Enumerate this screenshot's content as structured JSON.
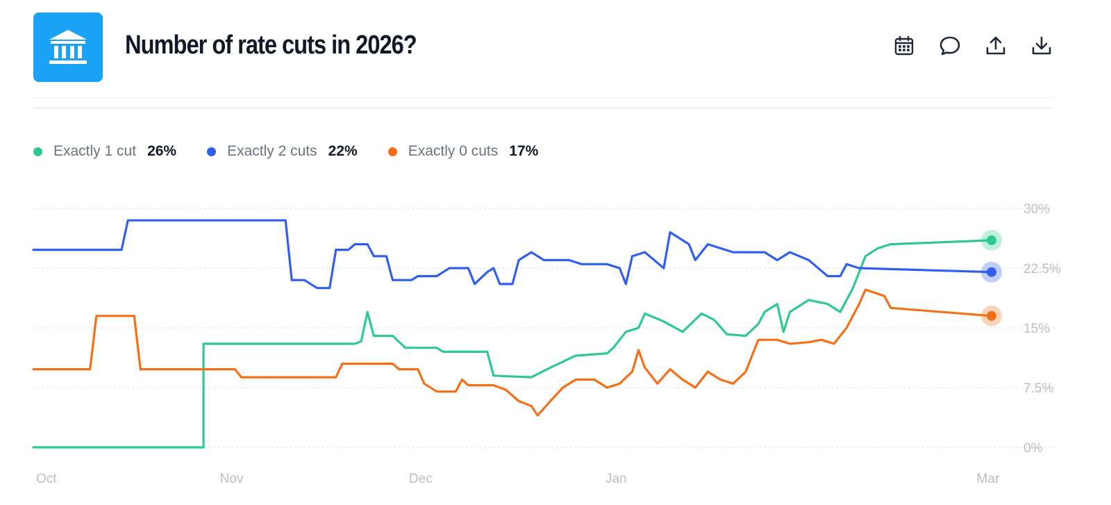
{
  "header": {
    "title": "Number of rate cuts in 2026?",
    "logo_icon": "bank-building-icon",
    "actions": [
      {
        "icon": "calendar-icon"
      },
      {
        "icon": "comment-icon"
      },
      {
        "icon": "share-upload-icon"
      },
      {
        "icon": "download-icon"
      }
    ]
  },
  "legend": [
    {
      "name": "Exactly 1 cut",
      "value": "26%",
      "color": "#2ec98f"
    },
    {
      "name": "Exactly 2 cuts",
      "value": "22%",
      "color": "#2f5ef0"
    },
    {
      "name": "Exactly 0 cuts",
      "value": "17%",
      "color": "#f56f16"
    }
  ],
  "chart_data": {
    "type": "line",
    "x_ticks": [
      "Oct",
      "Nov",
      "Dec",
      "Jan",
      "Mar"
    ],
    "y_ticks": [
      "30%",
      "22.5%",
      "15%",
      "7.5%",
      "0%"
    ],
    "ylim": [
      0,
      30
    ],
    "xlim": [
      "Oct 1",
      "Mar 2"
    ],
    "grid": "horizontal dotted",
    "series": [
      {
        "name": "Exactly 1 cut",
        "color": "#2ec98f",
        "points": [
          [
            "Oct 1",
            0
          ],
          [
            "Oct 28",
            0
          ],
          [
            "Oct 28",
            13
          ],
          [
            "Nov 21",
            13
          ],
          [
            "Nov 22",
            13.3
          ],
          [
            "Nov 23",
            17
          ],
          [
            "Nov 24",
            14
          ],
          [
            "Nov 27",
            14
          ],
          [
            "Nov 29",
            12.5
          ],
          [
            "Dec 4",
            12.5
          ],
          [
            "Dec 5",
            12
          ],
          [
            "Dec 12",
            12
          ],
          [
            "Dec 13",
            9
          ],
          [
            "Dec 19",
            8.8
          ],
          [
            "Dec 22",
            10
          ],
          [
            "Dec 26",
            11.5
          ],
          [
            "Dec 31",
            11.8
          ],
          [
            "Jan 1",
            12.5
          ],
          [
            "Jan 3",
            14.5
          ],
          [
            "Jan 5",
            15
          ],
          [
            "Jan 6",
            16.8
          ],
          [
            "Jan 9",
            15.8
          ],
          [
            "Jan 12",
            14.5
          ],
          [
            "Jan 15",
            16.8
          ],
          [
            "Jan 17",
            16
          ],
          [
            "Jan 19",
            14.2
          ],
          [
            "Jan 22",
            14
          ],
          [
            "Jan 24",
            15.5
          ],
          [
            "Jan 25",
            17
          ],
          [
            "Jan 27",
            18
          ],
          [
            "Jan 28",
            14.5
          ],
          [
            "Jan 29",
            17
          ],
          [
            "Feb 1",
            18.5
          ],
          [
            "Feb 4",
            18
          ],
          [
            "Feb 6",
            17
          ],
          [
            "Feb 8",
            20
          ],
          [
            "Feb 10",
            24
          ],
          [
            "Feb 12",
            25
          ],
          [
            "Feb 14",
            25.5
          ],
          [
            "Mar 2",
            26
          ]
        ]
      },
      {
        "name": "Exactly 2 cuts",
        "color": "#2f5ef0",
        "points": [
          [
            "Oct 1",
            24.8
          ],
          [
            "Oct 15",
            24.8
          ],
          [
            "Oct 16",
            28.5
          ],
          [
            "Nov 10",
            28.5
          ],
          [
            "Nov 11",
            21
          ],
          [
            "Nov 13",
            21
          ],
          [
            "Nov 15",
            20
          ],
          [
            "Nov 17",
            20
          ],
          [
            "Nov 18",
            24.8
          ],
          [
            "Nov 20",
            24.8
          ],
          [
            "Nov 21",
            25.5
          ],
          [
            "Nov 23",
            25.5
          ],
          [
            "Nov 24",
            24
          ],
          [
            "Nov 26",
            24
          ],
          [
            "Nov 27",
            21
          ],
          [
            "Nov 30",
            21
          ],
          [
            "Dec 1",
            21.5
          ],
          [
            "Dec 4",
            21.5
          ],
          [
            "Dec 6",
            22.5
          ],
          [
            "Dec 9",
            22.5
          ],
          [
            "Dec 10",
            20.5
          ],
          [
            "Dec 12",
            22
          ],
          [
            "Dec 13",
            22.5
          ],
          [
            "Dec 14",
            20.5
          ],
          [
            "Dec 16",
            20.5
          ],
          [
            "Dec 17",
            23.5
          ],
          [
            "Dec 19",
            24.5
          ],
          [
            "Dec 21",
            23.5
          ],
          [
            "Dec 25",
            23.5
          ],
          [
            "Dec 27",
            23
          ],
          [
            "Dec 31",
            23
          ],
          [
            "Jan 2",
            22.5
          ],
          [
            "Jan 3",
            20.5
          ],
          [
            "Jan 4",
            24
          ],
          [
            "Jan 6",
            24.5
          ],
          [
            "Jan 9",
            22.5
          ],
          [
            "Jan 10",
            27
          ],
          [
            "Jan 13",
            25.5
          ],
          [
            "Jan 14",
            23.5
          ],
          [
            "Jan 16",
            25.5
          ],
          [
            "Jan 20",
            24.5
          ],
          [
            "Jan 25",
            24.5
          ],
          [
            "Jan 27",
            23.5
          ],
          [
            "Jan 29",
            24.5
          ],
          [
            "Feb 1",
            23.5
          ],
          [
            "Feb 4",
            21.5
          ],
          [
            "Feb 6",
            21.5
          ],
          [
            "Feb 7",
            23
          ],
          [
            "Feb 9",
            22.5
          ],
          [
            "Mar 2",
            22
          ]
        ]
      },
      {
        "name": "Exactly 0 cuts",
        "color": "#f56f16",
        "points": [
          [
            "Oct 1",
            9.8
          ],
          [
            "Oct 10",
            9.8
          ],
          [
            "Oct 11",
            16.5
          ],
          [
            "Oct 17",
            16.5
          ],
          [
            "Oct 18",
            9.8
          ],
          [
            "Nov 2",
            9.8
          ],
          [
            "Nov 3",
            8.8
          ],
          [
            "Nov 18",
            8.8
          ],
          [
            "Nov 19",
            10.5
          ],
          [
            "Nov 27",
            10.5
          ],
          [
            "Nov 28",
            9.8
          ],
          [
            "Dec 1",
            9.8
          ],
          [
            "Dec 2",
            8
          ],
          [
            "Dec 4",
            7
          ],
          [
            "Dec 7",
            7
          ],
          [
            "Dec 8",
            8.5
          ],
          [
            "Dec 9",
            7.8
          ],
          [
            "Dec 13",
            7.8
          ],
          [
            "Dec 15",
            7.2
          ],
          [
            "Dec 17",
            5.8
          ],
          [
            "Dec 19",
            5.2
          ],
          [
            "Dec 20",
            4
          ],
          [
            "Dec 22",
            5.8
          ],
          [
            "Dec 24",
            7.5
          ],
          [
            "Dec 26",
            8.5
          ],
          [
            "Dec 29",
            8.5
          ],
          [
            "Dec 31",
            7.5
          ],
          [
            "Jan 2",
            8
          ],
          [
            "Jan 4",
            9.5
          ],
          [
            "Jan 5",
            12.2
          ],
          [
            "Jan 6",
            10
          ],
          [
            "Jan 8",
            8
          ],
          [
            "Jan 10",
            9.8
          ],
          [
            "Jan 12",
            8.5
          ],
          [
            "Jan 14",
            7.5
          ],
          [
            "Jan 16",
            9.5
          ],
          [
            "Jan 18",
            8.5
          ],
          [
            "Jan 20",
            8
          ],
          [
            "Jan 22",
            9.5
          ],
          [
            "Jan 24",
            13.5
          ],
          [
            "Jan 27",
            13.5
          ],
          [
            "Jan 29",
            13
          ],
          [
            "Feb 1",
            13.2
          ],
          [
            "Feb 3",
            13.5
          ],
          [
            "Feb 5",
            13
          ],
          [
            "Feb 7",
            15
          ],
          [
            "Feb 9",
            18
          ],
          [
            "Feb 10",
            19.8
          ],
          [
            "Feb 13",
            19
          ],
          [
            "Feb 14",
            17.5
          ],
          [
            "Mar 2",
            16.5
          ]
        ]
      }
    ]
  }
}
